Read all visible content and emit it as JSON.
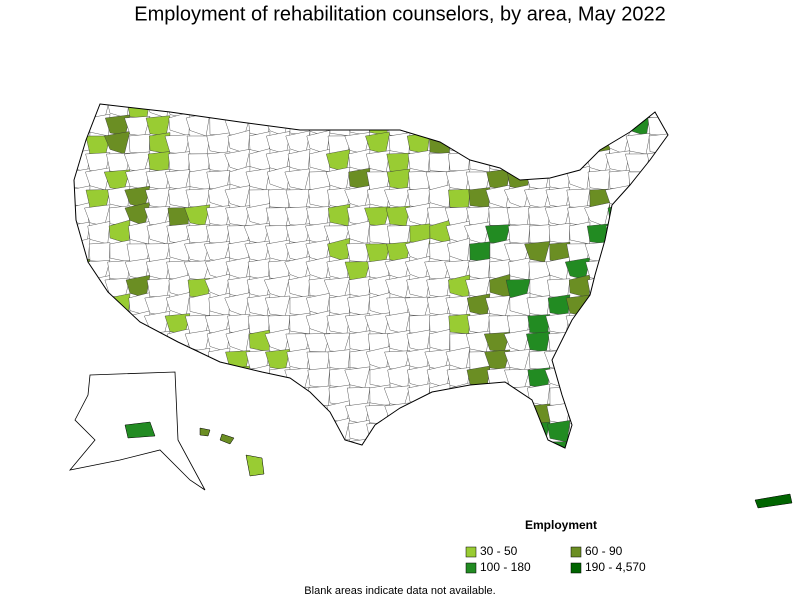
{
  "title": "Employment of rehabilitation counselors, by area, May 2022",
  "legend": {
    "title": "Employment",
    "items": [
      {
        "label": "30 - 50",
        "color": "#99cc33"
      },
      {
        "label": "60 - 90",
        "color": "#6b8e23"
      },
      {
        "label": "100 - 180",
        "color": "#228b22"
      },
      {
        "label": "190 - 4,570",
        "color": "#006400"
      }
    ]
  },
  "note": "Blank areas indicate data not available."
}
